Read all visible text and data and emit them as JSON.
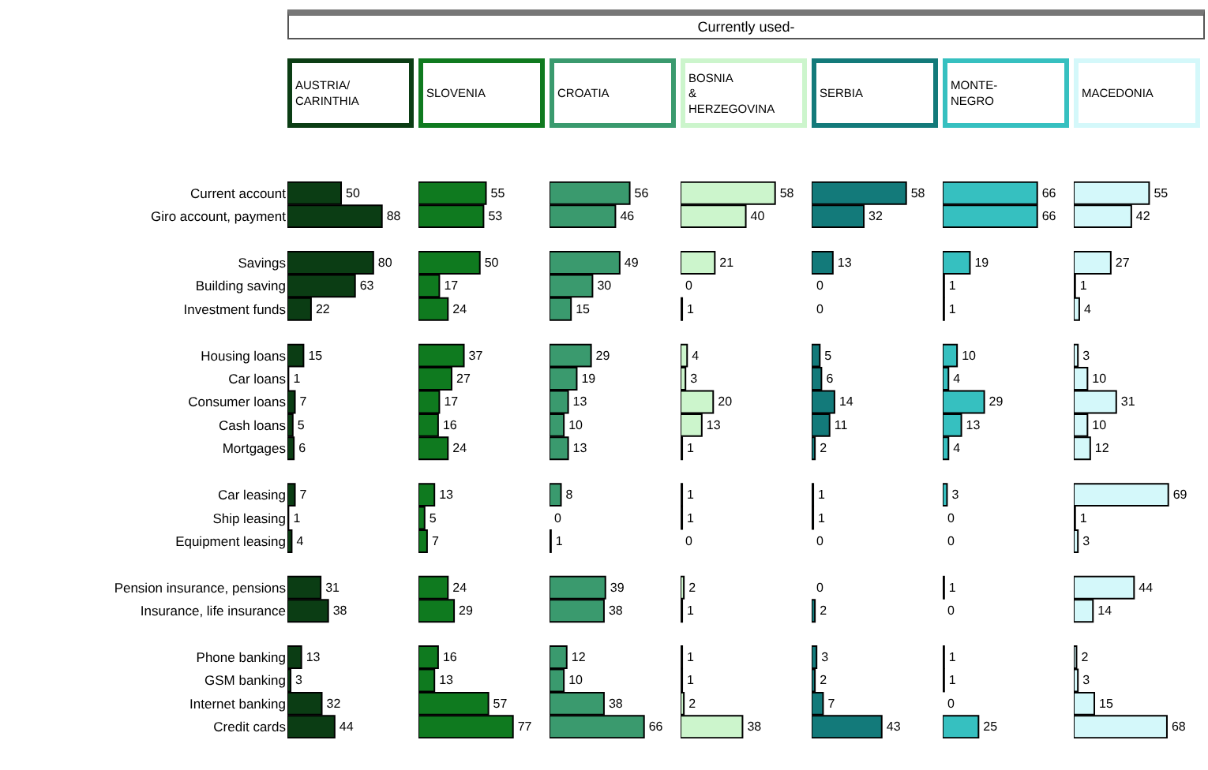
{
  "chart_data": [
    {
      "type": "bar",
      "orientation": "horizontal",
      "annotations": [
        "Currently used-"
      ],
      "categories": [
        "Current account",
        "Giro account, payment",
        null,
        "Savings",
        "Building saving",
        "Investment funds",
        null,
        "Housing loans",
        "Car loans",
        "Consumer loans",
        "Cash loans",
        "Mortgages",
        null,
        "Car leasing",
        "Ship leasing",
        "Equipment leasing",
        null,
        "Pension insurance, pensions",
        "Insurance, life insurance",
        null,
        "Phone banking",
        "GSM banking",
        "Internet banking",
        "Credit cards"
      ],
      "series": [
        {
          "name": "AUSTRIA/ CARINTHIA",
          "color": "#0b3d14",
          "values": [
            50,
            88,
            null,
            80,
            63,
            22,
            null,
            15,
            1,
            7,
            5,
            6,
            null,
            7,
            1,
            4,
            null,
            31,
            38,
            null,
            13,
            3,
            32,
            44
          ]
        }
      ],
      "tick_labels": "y",
      "data_labels": true,
      "legend": false
    },
    {
      "type": "bar",
      "orientation": "horizontal",
      "categories": [
        null,
        null,
        null,
        null,
        null,
        null,
        null,
        null,
        null,
        null,
        null,
        null,
        null,
        null,
        null,
        null,
        null,
        null,
        null,
        null,
        null,
        null,
        null,
        null
      ],
      "series": [
        {
          "name": "SLOVENIA",
          "color": "#0f7a1f",
          "values": [
            55,
            53,
            null,
            50,
            17,
            24,
            null,
            37,
            27,
            17,
            16,
            24,
            null,
            13,
            5,
            7,
            null,
            24,
            29,
            null,
            16,
            13,
            57,
            77
          ]
        }
      ],
      "tick_labels": false,
      "data_labels": true,
      "legend": false
    },
    {
      "type": "bar",
      "orientation": "horizontal",
      "categories": [
        null,
        null,
        null,
        null,
        null,
        null,
        null,
        null,
        null,
        null,
        null,
        null,
        null,
        null,
        null,
        null,
        null,
        null,
        null,
        null,
        null,
        null,
        null,
        null
      ],
      "series": [
        {
          "name": "CROATIA",
          "color": "#3a9a6e",
          "values": [
            56,
            46,
            null,
            49,
            30,
            15,
            null,
            29,
            19,
            13,
            10,
            13,
            null,
            8,
            0,
            1,
            null,
            39,
            38,
            null,
            12,
            10,
            38,
            66
          ]
        }
      ],
      "tick_labels": false,
      "data_labels": true,
      "legend": false
    },
    {
      "type": "bar",
      "orientation": "horizontal",
      "categories": [
        null,
        null,
        null,
        null,
        null,
        null,
        null,
        null,
        null,
        null,
        null,
        null,
        null,
        null,
        null,
        null,
        null,
        null,
        null,
        null,
        null,
        null,
        null,
        null
      ],
      "series": [
        {
          "name": "BOSNIA & HERZEGOVINA",
          "color": "#ccf5cc",
          "values": [
            58,
            40,
            null,
            21,
            0,
            1,
            null,
            4,
            3,
            20,
            13,
            1,
            null,
            1,
            1,
            0,
            null,
            2,
            1,
            null,
            1,
            1,
            2,
            38
          ]
        }
      ],
      "tick_labels": false,
      "data_labels": true,
      "legend": false
    },
    {
      "type": "bar",
      "orientation": "horizontal",
      "categories": [
        null,
        null,
        null,
        null,
        null,
        null,
        null,
        null,
        null,
        null,
        null,
        null,
        null,
        null,
        null,
        null,
        null,
        null,
        null,
        null,
        null,
        null,
        null,
        null
      ],
      "series": [
        {
          "name": "SERBIA",
          "color": "#137a7a",
          "values": [
            58,
            32,
            null,
            13,
            0,
            0,
            null,
            5,
            6,
            14,
            11,
            2,
            null,
            1,
            1,
            0,
            null,
            0,
            2,
            null,
            3,
            2,
            7,
            43
          ]
        }
      ],
      "tick_labels": false,
      "data_labels": true,
      "legend": false
    },
    {
      "type": "bar",
      "orientation": "horizontal",
      "categories": [
        null,
        null,
        null,
        null,
        null,
        null,
        null,
        null,
        null,
        null,
        null,
        null,
        null,
        null,
        null,
        null,
        null,
        null,
        null,
        null,
        null,
        null,
        null,
        null
      ],
      "series": [
        {
          "name": "MONTE-NEGRO",
          "color": "#36c0c0",
          "values": [
            66,
            66,
            null,
            19,
            1,
            1,
            null,
            10,
            4,
            29,
            13,
            4,
            null,
            3,
            0,
            0,
            null,
            1,
            0,
            null,
            1,
            1,
            0,
            25
          ]
        }
      ],
      "tick_labels": false,
      "data_labels": true,
      "legend": false
    },
    {
      "type": "bar",
      "orientation": "horizontal",
      "categories": [
        null,
        null,
        null,
        null,
        null,
        null,
        null,
        null,
        null,
        null,
        null,
        null,
        null,
        null,
        null,
        null,
        null,
        null,
        null,
        null,
        null,
        null,
        null,
        null
      ],
      "series": [
        {
          "name": "MACEDONIA",
          "color": "#d4f8fa",
          "values": [
            55,
            42,
            null,
            27,
            1,
            4,
            null,
            3,
            10,
            31,
            10,
            12,
            null,
            69,
            1,
            3,
            null,
            44,
            14,
            null,
            2,
            3,
            15,
            68
          ]
        }
      ],
      "tick_labels": false,
      "data_labels": true,
      "legend": false
    }
  ]
}
